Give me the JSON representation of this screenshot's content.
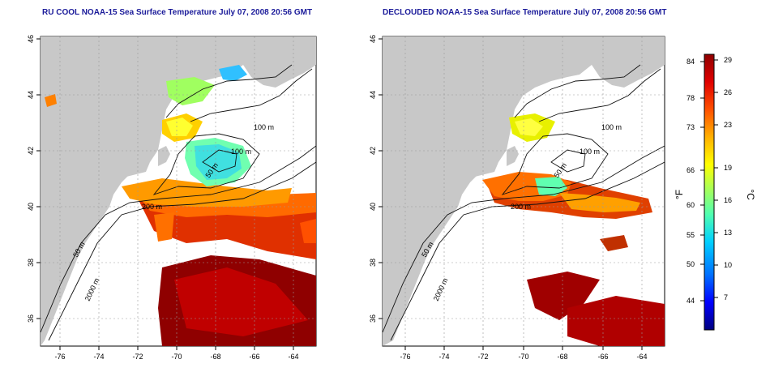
{
  "panels": [
    {
      "title": "RU COOL NOAA-15 Sea Surface Temperature July 07, 2008 20:56 GMT",
      "contour_labels": [
        "100 m",
        "100 m",
        "50 m",
        "200 m",
        "50 m",
        "2000 m"
      ]
    },
    {
      "title": "DECLOUDED NOAA-15 Sea Surface Temperature July 07, 2008 20:56 GMT",
      "contour_labels": [
        "100 m",
        "100 m",
        "50 m",
        "200 m",
        "50 m",
        "2000 m"
      ]
    }
  ],
  "axes": {
    "x_ticks": [
      "-76",
      "-74",
      "-72",
      "-70",
      "-68",
      "-66",
      "-64"
    ],
    "y_ticks": [
      "46",
      "44",
      "42",
      "40",
      "38",
      "36"
    ]
  },
  "colorbar": {
    "f_label": "°F",
    "c_label": "°C",
    "f_ticks": [
      "84",
      "78",
      "73",
      "66",
      "60",
      "55",
      "50",
      "44"
    ],
    "c_ticks": [
      "29",
      "26",
      "23",
      "19",
      "16",
      "13",
      "10",
      "7"
    ],
    "colors": [
      "#00007f",
      "#0000ff",
      "#0070ff",
      "#00d0ff",
      "#50ffb0",
      "#b0ff50",
      "#ffff00",
      "#ffb000",
      "#ff5000",
      "#e00000",
      "#8f0000"
    ]
  },
  "colors": {
    "land": "#c8c8c8",
    "title": "#1b1b9a"
  }
}
